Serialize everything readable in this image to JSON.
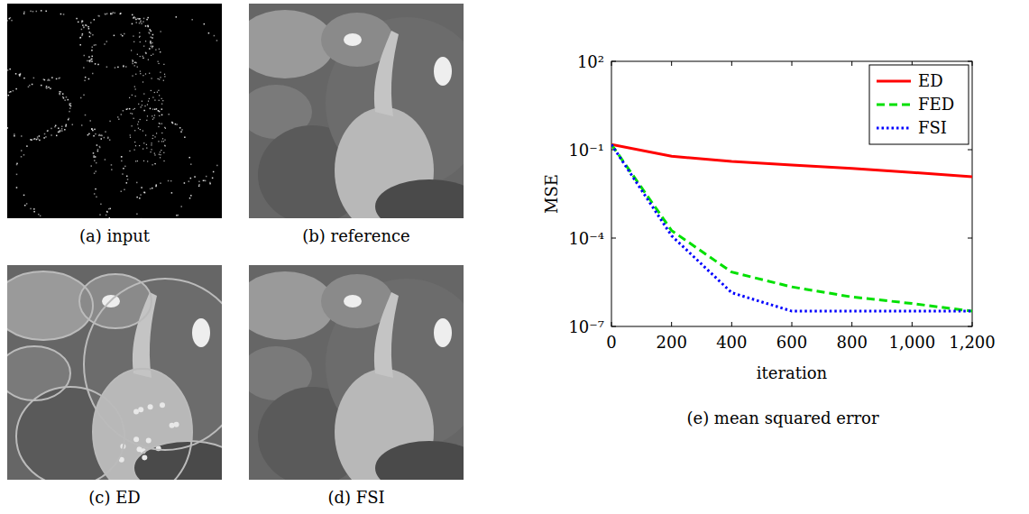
{
  "panels": [
    {
      "caption": "(a) input"
    },
    {
      "caption": "(b) reference"
    },
    {
      "caption": "(c) ED"
    },
    {
      "caption": "(d) FSI"
    }
  ],
  "chart_data": {
    "type": "line",
    "title": "(e) mean squared error",
    "xlabel": "iteration",
    "ylabel": "MSE",
    "x": [
      0,
      200,
      400,
      600,
      800,
      1000,
      1200
    ],
    "series": [
      {
        "name": "ED",
        "color": "#ff0000",
        "line_style": "solid",
        "values": [
          0.15,
          0.06,
          0.04,
          0.03,
          0.023,
          0.017,
          0.012
        ]
      },
      {
        "name": "FED",
        "color": "#00e000",
        "line_style": "dashed",
        "values": [
          0.15,
          0.00018,
          7e-06,
          2.2e-06,
          1e-06,
          6e-07,
          3.3e-07
        ]
      },
      {
        "name": "FSI",
        "color": "#0000ff",
        "line_style": "dotted",
        "values": [
          0.15,
          0.00012,
          1.4e-06,
          3.3e-07,
          3.3e-07,
          3.3e-07,
          3.3e-07
        ]
      }
    ],
    "xlim": [
      0,
      1200
    ],
    "xticks": [
      0,
      200,
      400,
      600,
      800,
      {
        "value": 1000,
        "label": "1,000"
      },
      {
        "value": 1200,
        "label": "1,200"
      }
    ],
    "ylim": [
      1e-07,
      100
    ],
    "yticks": [
      {
        "value": 1e-07,
        "label": "10⁻⁷"
      },
      {
        "value": 0.0001,
        "label": "10⁻⁴"
      },
      {
        "value": 0.1,
        "label": "10⁻¹"
      },
      {
        "value": 100,
        "label": "10²"
      }
    ],
    "log": "y",
    "grid": false,
    "legend": "top-right"
  }
}
